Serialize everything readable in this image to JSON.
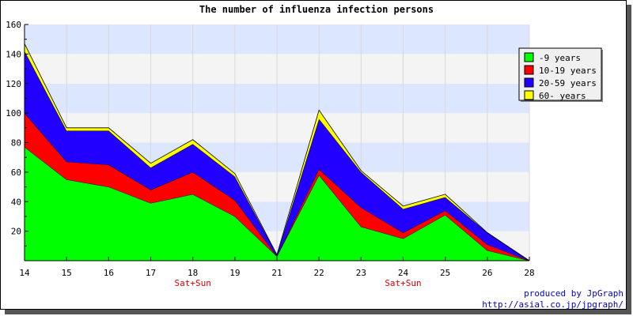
{
  "chart_data": {
    "type": "area",
    "stacked": true,
    "title": "The number of influenza infection persons",
    "x": [
      "14",
      "15",
      "16",
      "17",
      "18",
      "19",
      "21",
      "22",
      "23",
      "24",
      "25",
      "26",
      "28"
    ],
    "ylim": [
      0,
      160
    ],
    "yticks": [
      20,
      40,
      60,
      80,
      100,
      120,
      140,
      160
    ],
    "grid": true,
    "series": [
      {
        "name": "-9 years",
        "color": "#00ff00",
        "values": [
          77,
          55,
          50,
          39,
          45,
          30,
          3,
          58,
          23,
          15,
          31,
          7,
          0
        ]
      },
      {
        "name": "10-19 years",
        "color": "#ff0000",
        "values": [
          23,
          12,
          15,
          9,
          15,
          11,
          0,
          4,
          13,
          4,
          3,
          4,
          0
        ]
      },
      {
        "name": "20-59 years",
        "color": "#2200ff",
        "values": [
          42,
          21,
          23,
          15,
          19,
          16,
          1,
          34,
          24,
          16,
          9,
          8,
          0
        ]
      },
      {
        "name": "60- years",
        "color": "#ffff00",
        "values": [
          5,
          2,
          2,
          3,
          3,
          2,
          0,
          6,
          1,
          2,
          2,
          0,
          0
        ]
      }
    ],
    "annotations": [
      {
        "x": "18",
        "text": "Sat+Sun",
        "color": "#e00000"
      },
      {
        "x": "24",
        "text": "Sat+Sun",
        "color": "#e00000"
      }
    ],
    "legend_position": "top-right",
    "band_colors": [
      "#f4f4f4",
      "#dde6ff"
    ]
  },
  "footer": {
    "line1": "produced by JpGraph",
    "line2": "http://asial.co.jp/jpgraph/"
  }
}
